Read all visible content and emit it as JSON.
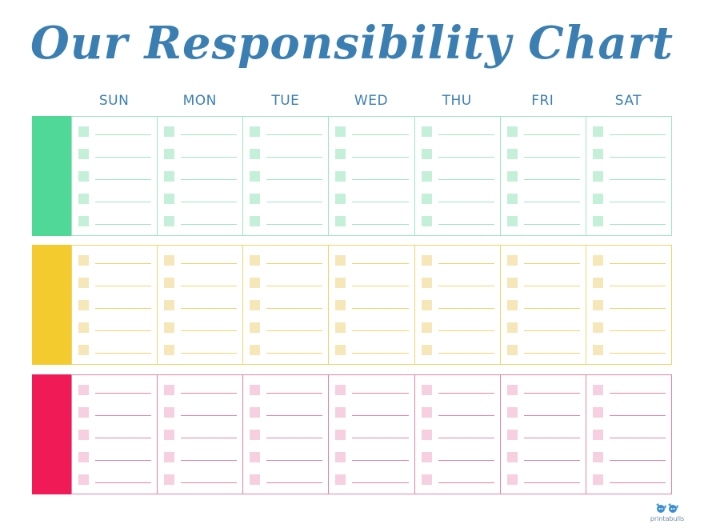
{
  "title": "Our Responsibility Chart",
  "days": [
    "SUN",
    "MON",
    "TUE",
    "WED",
    "THU",
    "FRI",
    "SAT"
  ],
  "tasks_per_day": 5,
  "rows": [
    {
      "name": "green",
      "tab_color": "#4fd898",
      "line_color": "#9fe6c2",
      "box_color": "#c4f0da"
    },
    {
      "name": "yellow",
      "tab_color": "#f3cb2f",
      "line_color": "#f1d36b",
      "box_color": "#f6e7b8"
    },
    {
      "name": "pink",
      "tab_color": "#ef1a56",
      "line_color": "#e382a5",
      "box_color": "#f6cfe0"
    }
  ],
  "colors": {
    "title": "#3b7fb2",
    "day_headers": "#3b7fb2"
  },
  "footer": {
    "logo_text": "printabulls"
  }
}
